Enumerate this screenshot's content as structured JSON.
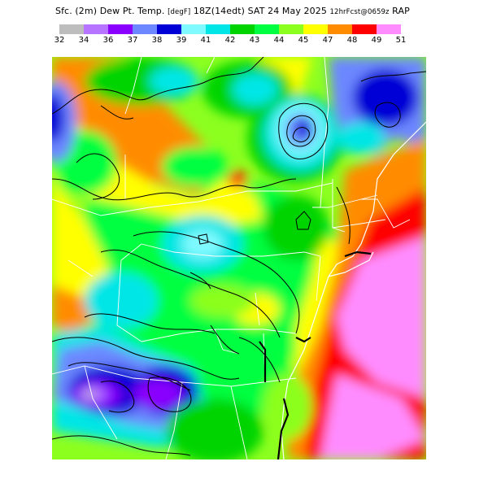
{
  "header": {
    "product": "Sfc. (2m) Dew Pt. Temp.",
    "units": "[degF]",
    "valid": "18Z(14edt) SAT 24 May 2025",
    "run": "12hrFcst@0659z",
    "model": "RAP"
  },
  "legend": {
    "ticks": [
      "32",
      "34",
      "36",
      "37",
      "38",
      "39",
      "41",
      "42",
      "43",
      "44",
      "45",
      "47",
      "48",
      "49",
      "51"
    ],
    "colors": [
      "#bdbdbd",
      "#b774ff",
      "#8a00ff",
      "#6c87ff",
      "#0000d6",
      "#7ffaff",
      "#00e6e6",
      "#00d400",
      "#00ff40",
      "#8cff1f",
      "#ffff00",
      "#ff8c00",
      "#ff0000",
      "#ff8cff"
    ]
  },
  "map": {
    "region": "Northeast US",
    "contour_color": "#000000",
    "boundary_color": "#ffffff"
  }
}
